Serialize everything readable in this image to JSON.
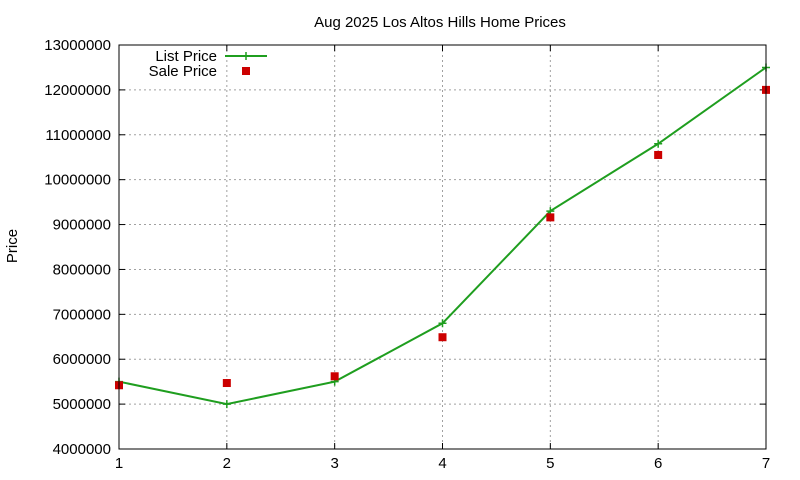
{
  "chart_data": {
    "type": "line",
    "title": "Aug 2025 Los Altos Hills Home Prices",
    "xlabel": "",
    "ylabel": "Price",
    "x": [
      1,
      2,
      3,
      4,
      5,
      6,
      7
    ],
    "xlim": [
      1,
      7
    ],
    "ylim": [
      4000000,
      13000000
    ],
    "yticks": [
      4000000,
      5000000,
      6000000,
      7000000,
      8000000,
      9000000,
      10000000,
      11000000,
      12000000,
      13000000
    ],
    "xticks": [
      1,
      2,
      3,
      4,
      5,
      6,
      7
    ],
    "grid": true,
    "legend_position": "top-left",
    "series": [
      {
        "name": "List Price",
        "style": "line+plus-markers",
        "color": "#1f9e1f",
        "values": [
          5500000,
          5000000,
          5500000,
          6800000,
          9300000,
          10800000,
          12500000
        ]
      },
      {
        "name": "Sale Price",
        "style": "square-markers",
        "color": "#cc0000",
        "values": [
          5420000,
          5470000,
          5620000,
          6490000,
          9160000,
          10550000,
          12000000
        ]
      }
    ]
  }
}
